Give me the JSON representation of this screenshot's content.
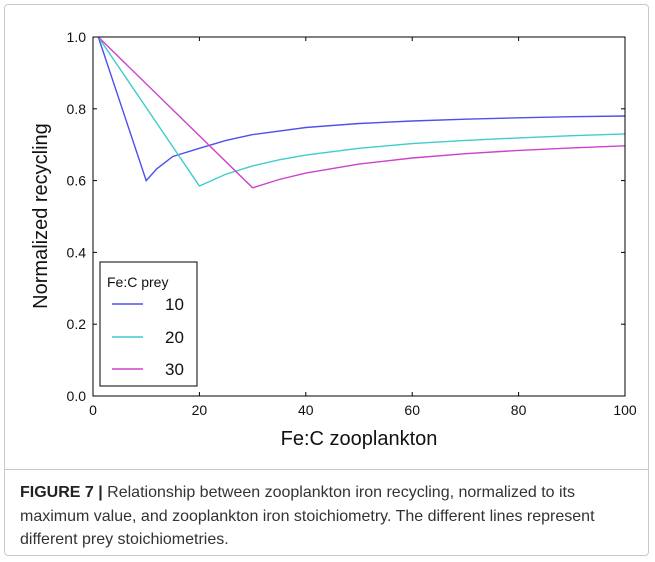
{
  "chart_data": {
    "type": "line",
    "xlabel": "Fe:C zooplankton",
    "ylabel": "Normalized recycling",
    "xlim": [
      0,
      100
    ],
    "ylim": [
      0,
      1.0
    ],
    "xticks": [
      0,
      20,
      40,
      60,
      80,
      100
    ],
    "xticklabels": [
      "0",
      "20",
      "40",
      "60",
      "80",
      "100"
    ],
    "yticks": [
      0,
      0.2,
      0.4,
      0.6,
      0.8,
      1.0
    ],
    "yticklabels": [
      "0.0",
      "0.2",
      "0.4",
      "0.6",
      "0.8",
      "1.0"
    ],
    "grid": false,
    "legend": {
      "title": "Fe:C prey",
      "position": "lower-left"
    },
    "series": [
      {
        "name": "10",
        "color": "#4f4fee",
        "x": [
          1,
          10,
          12,
          15,
          20,
          25,
          30,
          40,
          50,
          60,
          70,
          80,
          90,
          100
        ],
        "y": [
          1.0,
          0.6,
          0.633,
          0.667,
          0.69,
          0.712,
          0.728,
          0.748,
          0.759,
          0.766,
          0.771,
          0.775,
          0.778,
          0.78
        ]
      },
      {
        "name": "20",
        "color": "#3fcccc",
        "x": [
          1,
          20,
          25,
          30,
          35,
          40,
          50,
          60,
          70,
          80,
          90,
          100
        ],
        "y": [
          1.0,
          0.585,
          0.618,
          0.641,
          0.658,
          0.671,
          0.69,
          0.703,
          0.712,
          0.719,
          0.725,
          0.73
        ]
      },
      {
        "name": "30",
        "color": "#cc42cc",
        "x": [
          1,
          30,
          35,
          40,
          50,
          60,
          70,
          80,
          90,
          100
        ],
        "y": [
          1.0,
          0.58,
          0.603,
          0.621,
          0.646,
          0.663,
          0.675,
          0.684,
          0.691,
          0.697
        ]
      }
    ]
  },
  "caption": {
    "label": "FIGURE 7 |",
    "text": " Relationship between zooplankton iron recycling, normalized to its maximum value, and zooplankton iron stoichiometry. The different lines represent different prey stoichiometries."
  }
}
